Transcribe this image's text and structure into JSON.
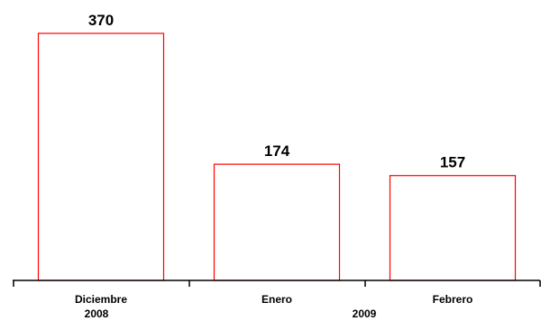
{
  "chart_data": {
    "type": "bar",
    "categories": [
      "Diciembre",
      "Enero",
      "Febrero"
    ],
    "values": [
      370,
      174,
      157
    ],
    "groups": [
      {
        "label": "2008",
        "categories": [
          "Diciembre"
        ]
      },
      {
        "label": "2009",
        "categories": [
          "Enero",
          "Febrero"
        ]
      }
    ],
    "title": "",
    "xlabel": "",
    "ylabel": "",
    "ylim": [
      0,
      370
    ],
    "grid": false,
    "legend": "none",
    "data_labels": true,
    "colors": {
      "bar_stroke": "#ff0000",
      "bar_fill": "#ffffff",
      "axis": "#000000",
      "text": "#000000"
    }
  }
}
